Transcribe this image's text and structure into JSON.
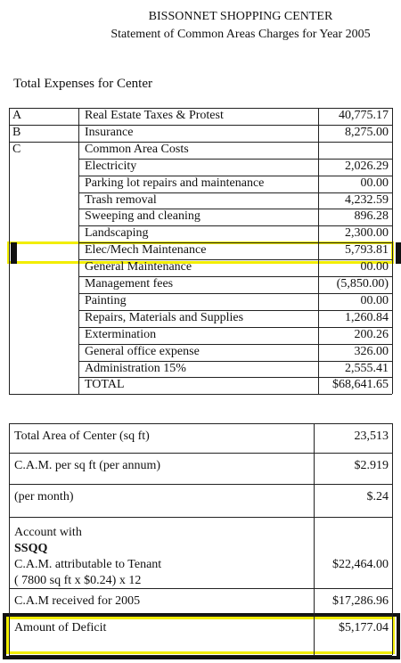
{
  "header": {
    "title": "BISSONNET SHOPPING CENTER",
    "subtitle": "Statement of Common Areas Charges for Year 2005"
  },
  "section_title": "Total Expenses for Center",
  "expenses": {
    "rows": [
      {
        "code": "A",
        "item": "Real Estate Taxes & Protest",
        "amount": "40,775.17"
      },
      {
        "code": "B",
        "item": "Insurance",
        "amount": "8,275.00"
      },
      {
        "code": "C",
        "item": "Common Area Costs"
      },
      {
        "item": "Electricity",
        "amount": "2,026.29"
      },
      {
        "item": "Parking lot repairs and maintenance",
        "amount": "00.00"
      },
      {
        "item": "Trash removal",
        "amount": "4,232.59"
      },
      {
        "item": "Sweeping and cleaning",
        "amount": "896.28"
      },
      {
        "item": "Landscaping",
        "amount": "2,300.00"
      },
      {
        "item": "Elec/Mech Maintenance",
        "amount": "5,793.81"
      },
      {
        "item": "General Maintenance",
        "amount": "00.00"
      },
      {
        "item": "Management fees",
        "amount": "(5,850.00)"
      },
      {
        "item": "Painting",
        "amount": "00.00"
      },
      {
        "item": "Repairs, Materials and Supplies",
        "amount": "1,260.84"
      },
      {
        "item": "Extermination",
        "amount": "200.26"
      },
      {
        "item": "General office expense",
        "amount": "326.00"
      },
      {
        "item": "Administration 15%",
        "amount": "2,555.41"
      },
      {
        "item": "TOTAL",
        "amount": "$68,641.65"
      }
    ]
  },
  "summary": {
    "rows": [
      {
        "lines": [
          "Total Area of Center (sq ft)"
        ],
        "amount": "23,513"
      },
      {
        "lines": [
          "C.A.M. per sq ft (per annum)"
        ],
        "amount": "$2.919"
      },
      {
        "lines": [
          "(per month)"
        ],
        "amount": "$.24"
      },
      {
        "lines": [
          "Account with",
          "SSQQ",
          "C.A.M. attributable to Tenant",
          "( 7800 sq ft x $0.24) x 12"
        ],
        "amount": "$22,464.00"
      },
      {
        "lines": [
          "C.A.M received for 2005"
        ],
        "amount": "$17,286.96"
      },
      {
        "lines": [
          "Amount of Deficit"
        ],
        "amount": "$5,177.04"
      }
    ]
  }
}
